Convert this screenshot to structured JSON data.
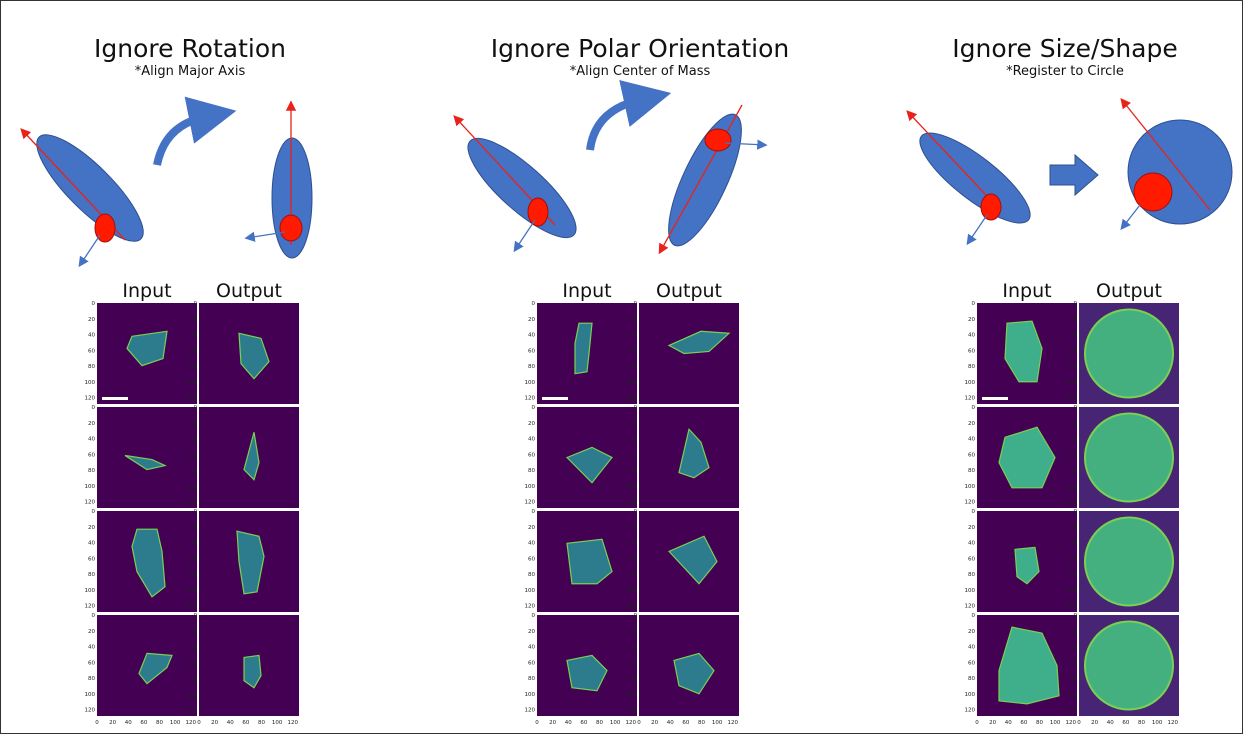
{
  "panels": [
    {
      "title": "Ignore Rotation",
      "subtitle": "*Align Major Axis",
      "columns": [
        "Input",
        "Output"
      ]
    },
    {
      "title": "Ignore Polar Orientation",
      "subtitle": "*Align Center of Mass",
      "columns": [
        "Input",
        "Output"
      ]
    },
    {
      "title": "Ignore Size/Shape",
      "subtitle": "*Register to Circle",
      "columns": [
        "Input",
        "Output"
      ]
    }
  ],
  "axis_ticks": [
    0,
    20,
    40,
    60,
    80,
    100,
    120
  ]
}
